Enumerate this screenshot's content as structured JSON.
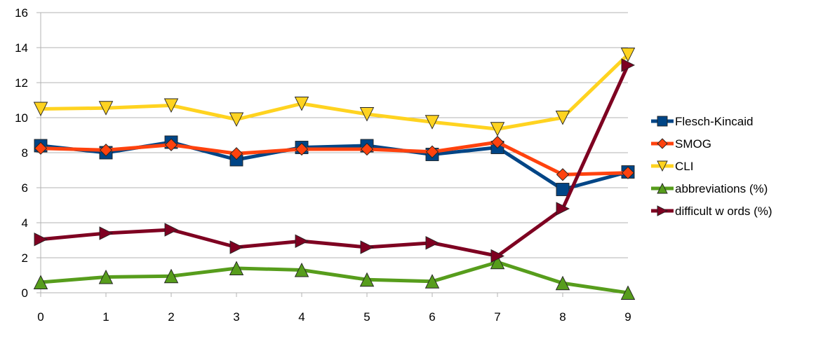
{
  "chart_data": {
    "type": "line",
    "title": "",
    "xlabel": "",
    "ylabel": "",
    "x": [
      0,
      1,
      2,
      3,
      4,
      5,
      6,
      7,
      8,
      9
    ],
    "x_tick_labels": [
      "0",
      "1",
      "2",
      "3",
      "4",
      "5",
      "6",
      "7",
      "8",
      "9"
    ],
    "ylim": [
      0,
      16
    ],
    "y_tick_labels": [
      "0",
      "2",
      "4",
      "6",
      "8",
      "10",
      "12",
      "14",
      "16"
    ],
    "grid": "horizontal",
    "legend_position": "right",
    "series": [
      {
        "name": "Flesch-Kincaid",
        "color": "#004586",
        "marker": "square",
        "values": [
          8.4,
          8.0,
          8.6,
          7.6,
          8.3,
          8.4,
          7.9,
          8.3,
          5.9,
          6.9
        ]
      },
      {
        "name": "SMOG",
        "color": "#ff420e",
        "marker": "diamond",
        "values": [
          8.25,
          8.15,
          8.45,
          7.95,
          8.2,
          8.2,
          8.05,
          8.6,
          6.75,
          6.85
        ]
      },
      {
        "name": "CLI",
        "color": "#ffd320",
        "marker": "triangle-down",
        "values": [
          10.5,
          10.55,
          10.7,
          9.9,
          10.8,
          10.2,
          9.75,
          9.35,
          10.0,
          13.6
        ]
      },
      {
        "name": "abbreviations (%)",
        "color": "#579d1c",
        "marker": "triangle-up",
        "values": [
          0.6,
          0.9,
          0.95,
          1.4,
          1.3,
          0.75,
          0.65,
          1.75,
          0.55,
          0.0
        ]
      },
      {
        "name": "difficult w ords (%)",
        "color": "#7e0021",
        "marker": "triangle-right",
        "values": [
          3.05,
          3.4,
          3.6,
          2.6,
          2.95,
          2.6,
          2.85,
          2.1,
          4.8,
          13.0
        ]
      }
    ]
  }
}
